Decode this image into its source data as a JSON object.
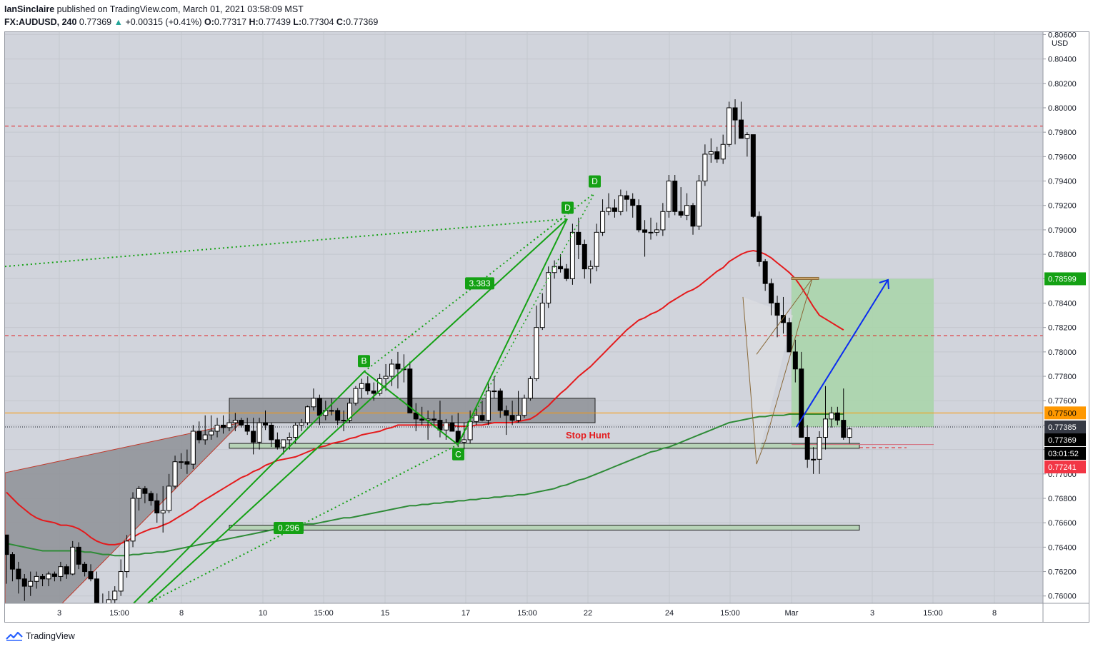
{
  "header": {
    "publisher": "IanSinclaire",
    "published_text": "published on TradingView.com, March 01, 2021 03:58:09 MST",
    "symbol": "FX:AUDUSD",
    "interval": "240",
    "last": "0.77369",
    "change": "+0.00315 (+0.41%)",
    "o_label": "O:",
    "o": "0.77317",
    "h_label": "H:",
    "h": "0.77439",
    "l_label": "L:",
    "l": "0.77304",
    "c_label": "C:",
    "c": "0.77369"
  },
  "footer": {
    "brand": "TradingView"
  },
  "colors": {
    "background": "#d1d4dc",
    "bull_body": "#ffffff",
    "bear_body": "#000000",
    "ema_red": "#e41a1c",
    "ema_green": "#2e8b37",
    "pattern_green": "#14a114",
    "dashed_red": "#e41a1c",
    "orange_line": "#ff9800",
    "arrow_blue": "#0a2cf0",
    "target_zone": "#a8d5a8",
    "stop_zone": "#eab0b8"
  },
  "chart_data": {
    "type": "candlestick",
    "currency_label": "USD",
    "ylim": [
      0.7594,
      0.8062
    ],
    "y_ticks": [
      "0.80600",
      "0.80400",
      "0.80200",
      "0.80000",
      "0.79800",
      "0.79600",
      "0.79400",
      "0.79200",
      "0.79000",
      "0.78800",
      "0.78600",
      "0.78400",
      "0.78200",
      "0.78000",
      "0.77800",
      "0.77600",
      "0.77400",
      "0.77200",
      "0.77000",
      "0.76800",
      "0.76600",
      "0.76400",
      "0.76200",
      "0.76000"
    ],
    "x_ticks": [
      "3",
      "15:00",
      "8",
      "10",
      "15:00",
      "15",
      "17",
      "15:00",
      "22",
      "24",
      "15:00",
      "Mar",
      "3",
      "15:00",
      "8"
    ],
    "candles": [
      [
        0.765,
        0.764,
        0.761
      ],
      [
        0.7634,
        0.7636,
        0.7612
      ],
      [
        0.7622,
        0.7628,
        0.7602
      ],
      [
        0.7614,
        0.7618,
        0.7596
      ],
      [
        0.7608,
        0.762,
        0.76
      ],
      [
        0.7612,
        0.762,
        0.7606
      ],
      [
        0.7616,
        0.7618,
        0.7608
      ],
      [
        0.7614,
        0.762,
        0.7608
      ],
      [
        0.7618,
        0.762,
        0.7612
      ],
      [
        0.7616,
        0.7628,
        0.7612
      ],
      [
        0.7624,
        0.7626,
        0.7614
      ],
      [
        0.7618,
        0.7645,
        0.7617
      ],
      [
        0.764,
        0.7644,
        0.7622
      ],
      [
        0.7626,
        0.7628,
        0.7616
      ],
      [
        0.762,
        0.7626,
        0.7612
      ],
      [
        0.7614,
        0.762,
        0.7588
      ],
      [
        0.759,
        0.7602,
        0.7586
      ],
      [
        0.7594,
        0.7604,
        0.759
      ],
      [
        0.7597,
        0.7608,
        0.7592
      ],
      [
        0.7604,
        0.763,
        0.76
      ],
      [
        0.762,
        0.765,
        0.7615
      ],
      [
        0.7645,
        0.7685,
        0.764
      ],
      [
        0.768,
        0.769,
        0.767
      ],
      [
        0.7688,
        0.769,
        0.7676
      ],
      [
        0.7684,
        0.7686,
        0.7674
      ],
      [
        0.7678,
        0.7684,
        0.766
      ],
      [
        0.7668,
        0.769,
        0.7652
      ],
      [
        0.767,
        0.77,
        0.7668
      ],
      [
        0.769,
        0.7715,
        0.7688
      ],
      [
        0.771,
        0.7717,
        0.7704
      ],
      [
        0.771,
        0.772,
        0.77
      ],
      [
        0.7708,
        0.774,
        0.7704
      ],
      [
        0.7735,
        0.7743,
        0.7725
      ],
      [
        0.7728,
        0.7748,
        0.7724
      ],
      [
        0.7732,
        0.7748,
        0.7728
      ],
      [
        0.7735,
        0.7746,
        0.773
      ],
      [
        0.774,
        0.7748,
        0.7733
      ],
      [
        0.7738,
        0.7745,
        0.7735
      ],
      [
        0.7742,
        0.775,
        0.7735
      ],
      [
        0.7744,
        0.7746,
        0.7738
      ],
      [
        0.774,
        0.7746,
        0.7732
      ],
      [
        0.7735,
        0.7746,
        0.7716
      ],
      [
        0.7726,
        0.7746,
        0.772
      ],
      [
        0.7742,
        0.7752,
        0.7736
      ],
      [
        0.774,
        0.7742,
        0.7722
      ],
      [
        0.7728,
        0.7734,
        0.772
      ],
      [
        0.7722,
        0.7726,
        0.7716
      ],
      [
        0.7728,
        0.7734,
        0.772
      ],
      [
        0.773,
        0.7742,
        0.7725
      ],
      [
        0.774,
        0.7745,
        0.7735
      ],
      [
        0.7742,
        0.7756,
        0.774
      ],
      [
        0.7755,
        0.777,
        0.7752
      ],
      [
        0.7762,
        0.7765,
        0.774
      ],
      [
        0.7748,
        0.776,
        0.7744
      ],
      [
        0.7752,
        0.7762,
        0.7748
      ],
      [
        0.7752,
        0.7754,
        0.774
      ],
      [
        0.7744,
        0.7752,
        0.7735
      ],
      [
        0.7744,
        0.7762,
        0.7742
      ],
      [
        0.7758,
        0.7772,
        0.7756
      ],
      [
        0.777,
        0.7778,
        0.7762
      ],
      [
        0.7774,
        0.778,
        0.7765
      ],
      [
        0.7768,
        0.7775,
        0.776
      ],
      [
        0.7766,
        0.7782,
        0.7764
      ],
      [
        0.7778,
        0.779,
        0.7768
      ],
      [
        0.778,
        0.7794,
        0.7772
      ],
      [
        0.779,
        0.78,
        0.777
      ],
      [
        0.7786,
        0.7798,
        0.7775
      ],
      [
        0.7786,
        0.7792,
        0.7765
      ],
      [
        0.775,
        0.7758,
        0.7735
      ],
      [
        0.7745,
        0.7755,
        0.774
      ],
      [
        0.7744,
        0.7752,
        0.7728
      ],
      [
        0.7745,
        0.7752,
        0.774
      ],
      [
        0.7744,
        0.776,
        0.773
      ],
      [
        0.7736,
        0.7745,
        0.7728
      ],
      [
        0.7742,
        0.7748,
        0.7735
      ],
      [
        0.7735,
        0.775,
        0.7722
      ],
      [
        0.7726,
        0.7742,
        0.772
      ],
      [
        0.7728,
        0.7752,
        0.7725
      ],
      [
        0.7743,
        0.7756,
        0.774
      ],
      [
        0.7748,
        0.776,
        0.7743
      ],
      [
        0.7744,
        0.7775,
        0.774
      ],
      [
        0.7768,
        0.778,
        0.7762
      ],
      [
        0.7768,
        0.777,
        0.7746
      ],
      [
        0.7752,
        0.7756,
        0.7732
      ],
      [
        0.7748,
        0.776,
        0.774
      ],
      [
        0.7744,
        0.7768,
        0.7742
      ],
      [
        0.7748,
        0.7765,
        0.7746
      ],
      [
        0.7762,
        0.778,
        0.776
      ],
      [
        0.7778,
        0.7838,
        0.7776
      ],
      [
        0.782,
        0.7848,
        0.7818
      ],
      [
        0.784,
        0.787,
        0.7836
      ],
      [
        0.7865,
        0.7875,
        0.786
      ],
      [
        0.787,
        0.788,
        0.7865
      ],
      [
        0.7868,
        0.7872,
        0.7858
      ],
      [
        0.786,
        0.7905,
        0.7855
      ],
      [
        0.7898,
        0.791,
        0.7876
      ],
      [
        0.7888,
        0.7892,
        0.786
      ],
      [
        0.7868,
        0.7875,
        0.7856
      ],
      [
        0.787,
        0.7905,
        0.7866
      ],
      [
        0.7898,
        0.7925,
        0.7895
      ],
      [
        0.7915,
        0.793,
        0.7912
      ],
      [
        0.7918,
        0.7925,
        0.791
      ],
      [
        0.7915,
        0.7933,
        0.7912
      ],
      [
        0.7928,
        0.7932,
        0.7915
      ],
      [
        0.7925,
        0.793,
        0.791
      ],
      [
        0.792,
        0.7925,
        0.7898
      ],
      [
        0.79,
        0.7908,
        0.7878
      ],
      [
        0.7898,
        0.791,
        0.7892
      ],
      [
        0.7898,
        0.7906,
        0.7895
      ],
      [
        0.79,
        0.7922,
        0.7895
      ],
      [
        0.7915,
        0.7945,
        0.791
      ],
      [
        0.794,
        0.7945,
        0.7912
      ],
      [
        0.7915,
        0.7935,
        0.791
      ],
      [
        0.7912,
        0.793,
        0.7908
      ],
      [
        0.792,
        0.7922,
        0.7896
      ],
      [
        0.7903,
        0.7945,
        0.79
      ],
      [
        0.794,
        0.797,
        0.7936
      ],
      [
        0.7962,
        0.7975,
        0.7955
      ],
      [
        0.7964,
        0.7968,
        0.7955
      ],
      [
        0.7958,
        0.7978,
        0.7954
      ],
      [
        0.797,
        0.8005,
        0.7968
      ],
      [
        0.8,
        0.8007,
        0.797
      ],
      [
        0.799,
        0.8005,
        0.7975
      ],
      [
        0.7975,
        0.798,
        0.796
      ],
      [
        0.7978,
        0.7976,
        0.791
      ],
      [
        0.7911,
        0.7915,
        0.787
      ],
      [
        0.7874,
        0.7876,
        0.785
      ],
      [
        0.7856,
        0.786,
        0.783
      ],
      [
        0.784,
        0.7846,
        0.7812
      ],
      [
        0.783,
        0.7845,
        0.7815
      ],
      [
        0.7824,
        0.7828,
        0.78
      ],
      [
        0.78,
        0.781,
        0.7775
      ],
      [
        0.7786,
        0.78,
        0.774
      ],
      [
        0.773,
        0.774,
        0.7705
      ],
      [
        0.7712,
        0.7722,
        0.77
      ],
      [
        0.7712,
        0.7735,
        0.77
      ],
      [
        0.773,
        0.7772,
        0.772
      ],
      [
        0.7745,
        0.7755,
        0.7738
      ],
      [
        0.775,
        0.7755,
        0.774
      ],
      [
        0.7744,
        0.777,
        0.7728
      ],
      [
        0.773,
        0.7738,
        0.7725
      ]
    ],
    "ema_red": [
      0.7685,
      0.768,
      0.7675,
      0.7671,
      0.7667,
      0.7664,
      0.7662,
      0.7661,
      0.766,
      0.7658,
      0.7658,
      0.7657,
      0.7655,
      0.7652,
      0.7648,
      0.7645,
      0.7643,
      0.7642,
      0.7642,
      0.7643,
      0.7645,
      0.7648,
      0.7651,
      0.7653,
      0.7655,
      0.7656,
      0.7658,
      0.766,
      0.7663,
      0.7666,
      0.7669,
      0.7672,
      0.7676,
      0.7679,
      0.7682,
      0.7685,
      0.7688,
      0.7691,
      0.7694,
      0.7697,
      0.7699,
      0.7702,
      0.7704,
      0.7707,
      0.7709,
      0.7711,
      0.7712,
      0.7713,
      0.7714,
      0.7716,
      0.7718,
      0.772,
      0.7722,
      0.7723,
      0.7725,
      0.7726,
      0.7727,
      0.7729,
      0.773,
      0.7732,
      0.7733,
      0.7734,
      0.7735,
      0.7737,
      0.7738,
      0.774,
      0.774,
      0.774,
      0.774,
      0.774,
      0.774,
      0.774,
      0.774,
      0.774,
      0.774,
      0.7739,
      0.7739,
      0.7739,
      0.774,
      0.774,
      0.7741,
      0.7742,
      0.7742,
      0.7742,
      0.7742,
      0.7743,
      0.7744,
      0.7745,
      0.7748,
      0.7752,
      0.7756,
      0.7761,
      0.7766,
      0.777,
      0.7775,
      0.778,
      0.7784,
      0.7788,
      0.7793,
      0.7798,
      0.7803,
      0.7808,
      0.7813,
      0.7818,
      0.7822,
      0.7826,
      0.7828,
      0.7831,
      0.7833,
      0.7836,
      0.784,
      0.7843,
      0.7846,
      0.7849,
      0.7851,
      0.7854,
      0.7858,
      0.7862,
      0.7866,
      0.7869,
      0.7874,
      0.7877,
      0.788,
      0.7882,
      0.7883,
      0.7882,
      0.788,
      0.7877,
      0.7873,
      0.7869,
      0.7865,
      0.786,
      0.7853,
      0.7845,
      0.7837,
      0.783,
      0.7827,
      0.7824,
      0.7821,
      0.7818
    ],
    "ema_green": [
      0.7643,
      0.7642,
      0.7641,
      0.764,
      0.7639,
      0.7638,
      0.7637,
      0.7637,
      0.7637,
      0.7637,
      0.7637,
      0.7637,
      0.7637,
      0.7636,
      0.7636,
      0.7635,
      0.7634,
      0.7634,
      0.7633,
      0.7633,
      0.7633,
      0.7634,
      0.7634,
      0.7635,
      0.7635,
      0.7636,
      0.7636,
      0.7637,
      0.7638,
      0.7639,
      0.764,
      0.7641,
      0.7642,
      0.7643,
      0.7644,
      0.7645,
      0.7646,
      0.7647,
      0.7648,
      0.7649,
      0.765,
      0.7651,
      0.7652,
      0.7653,
      0.7654,
      0.7655,
      0.7656,
      0.7656,
      0.7657,
      0.7658,
      0.7659,
      0.7659,
      0.766,
      0.7661,
      0.7662,
      0.7663,
      0.7664,
      0.7664,
      0.7665,
      0.7666,
      0.7667,
      0.7668,
      0.7669,
      0.767,
      0.7671,
      0.7672,
      0.7673,
      0.7674,
      0.7674,
      0.7675,
      0.7675,
      0.7676,
      0.7676,
      0.7677,
      0.7677,
      0.7678,
      0.7678,
      0.7679,
      0.7679,
      0.768,
      0.768,
      0.7681,
      0.7681,
      0.7682,
      0.7682,
      0.7683,
      0.7683,
      0.7684,
      0.7685,
      0.7686,
      0.7687,
      0.7688,
      0.769,
      0.7691,
      0.7693,
      0.7695,
      0.7696,
      0.7698,
      0.77,
      0.7702,
      0.7704,
      0.7706,
      0.7708,
      0.771,
      0.7712,
      0.7714,
      0.7716,
      0.7718,
      0.7719,
      0.7721,
      0.7722,
      0.7724,
      0.7726,
      0.7728,
      0.773,
      0.7732,
      0.7734,
      0.7736,
      0.7738,
      0.774,
      0.7742,
      0.7743,
      0.7744,
      0.7745,
      0.7746,
      0.7747,
      0.7747,
      0.7748,
      0.7748,
      0.7748,
      0.7749,
      0.7749,
      0.7749,
      0.7749,
      0.7749,
      0.7749,
      0.7749,
      0.7749,
      0.7749,
      0.7749
    ],
    "horizontal_levels": {
      "dashed_red_upper": 0.7985,
      "dashed_red_middle": 0.78133,
      "orange_solid": 0.775,
      "black_dotted": 0.77385,
      "dashed_red_lower": 0.77215
    },
    "price_tags": [
      {
        "label": "0.78599",
        "price": 0.78599,
        "bg": "#14a114",
        "fg": "#ffffff"
      },
      {
        "label": "0.77500",
        "price": 0.775,
        "bg": "#ff9800",
        "fg": "#000000"
      },
      {
        "label": "0.77385",
        "price": 0.77385,
        "bg": "#363a45",
        "fg": "#ffffff"
      },
      {
        "label": "0.77369",
        "price": 0.77369,
        "bg": "#000000",
        "fg": "#ffffff"
      },
      {
        "label": "03:01:52",
        "price": 0.7725,
        "bg": "#000000",
        "fg": "#ffffff"
      },
      {
        "label": "0.77241",
        "price": 0.77241,
        "bg": "#f23645",
        "fg": "#ffffff"
      }
    ],
    "annotations": {
      "point_b": "B",
      "point_c": "C",
      "point_d1": "D",
      "point_d2": "D",
      "ratio_upper": "3.383",
      "ratio_lower": "0.296",
      "stop_hunt": "Stop Hunt"
    },
    "zones": {
      "resistance_box": [
        0.7742,
        0.7762
      ],
      "support_box_upper": [
        0.7721,
        0.7725
      ],
      "support_box_lower": [
        0.7654,
        0.7658
      ],
      "target_zone": [
        0.77385,
        0.78599
      ],
      "stop_zone": [
        0.77241,
        0.77385
      ]
    }
  }
}
